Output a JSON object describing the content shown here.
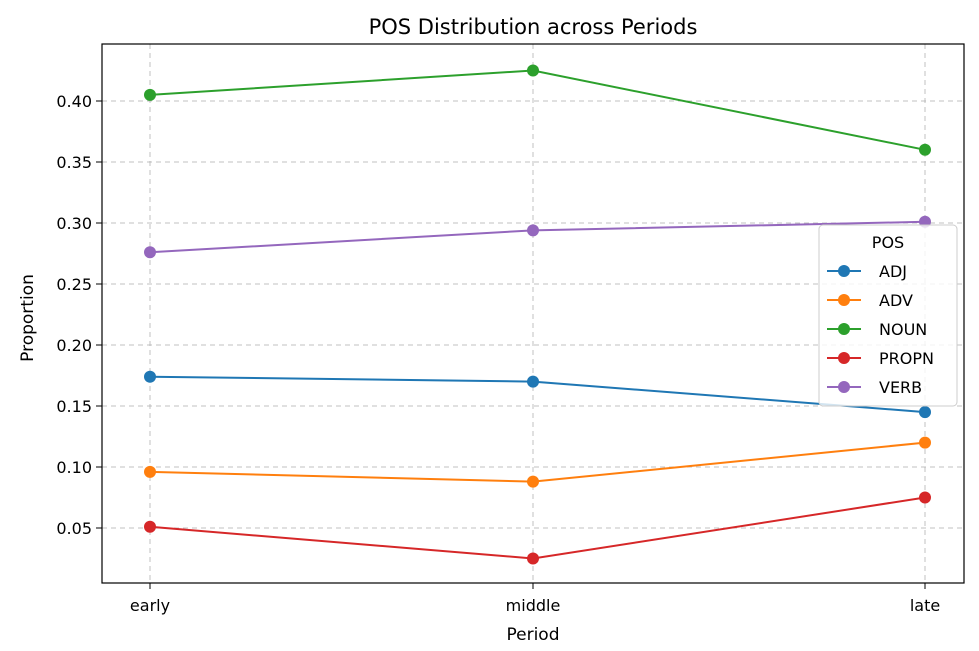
{
  "chart_data": {
    "type": "line",
    "title": "POS Distribution across Periods",
    "xlabel": "Period",
    "ylabel": "Proportion",
    "categories": [
      "early",
      "middle",
      "late"
    ],
    "ylim": [
      0.0,
      0.44
    ],
    "yticks": [
      "0.05",
      "0.10",
      "0.15",
      "0.20",
      "0.25",
      "0.30",
      "0.35",
      "0.40"
    ],
    "grid": true,
    "legend": {
      "title": "POS",
      "placement": "center-right"
    },
    "series": [
      {
        "name": "ADJ",
        "color": "#1f77b4",
        "values": [
          0.174,
          0.17,
          0.145
        ]
      },
      {
        "name": "ADV",
        "color": "#ff7f0e",
        "values": [
          0.096,
          0.088,
          0.12
        ]
      },
      {
        "name": "NOUN",
        "color": "#2ca02c",
        "values": [
          0.405,
          0.425,
          0.36
        ]
      },
      {
        "name": "PROPN",
        "color": "#d62728",
        "values": [
          0.051,
          0.025,
          0.075
        ]
      },
      {
        "name": "VERB",
        "color": "#9467bd",
        "values": [
          0.276,
          0.294,
          0.301
        ]
      }
    ]
  }
}
